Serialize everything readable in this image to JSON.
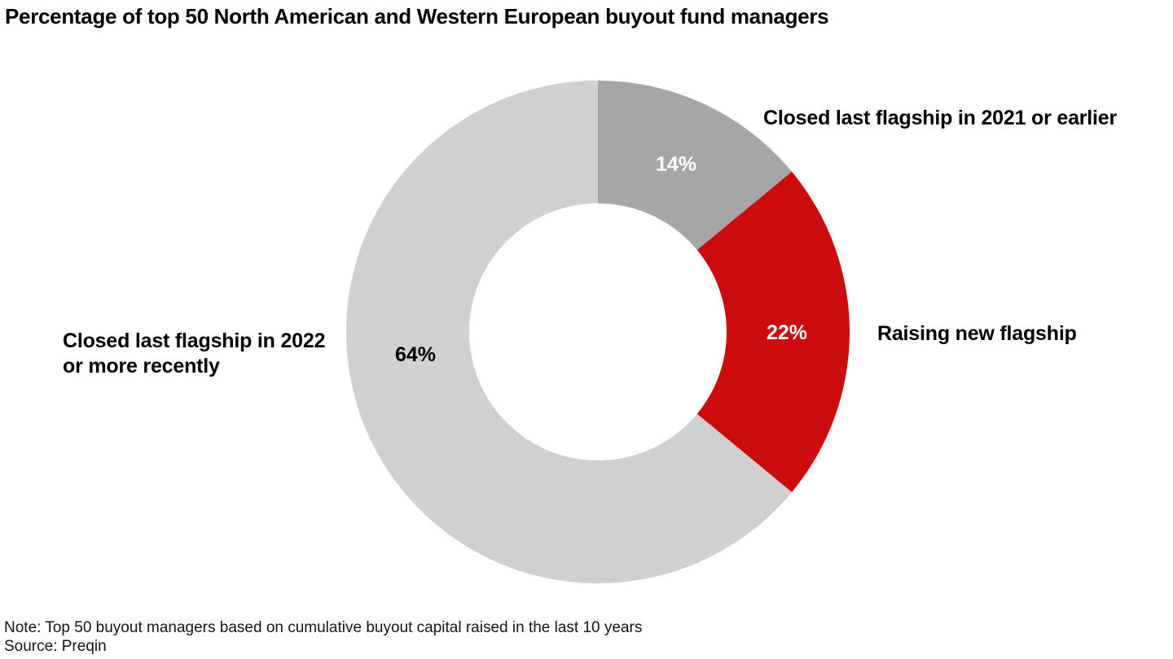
{
  "title": "Percentage of top 50 North American and Western European buyout fund managers",
  "footnote": {
    "note": "Note: Top 50 buyout managers based on cumulative buyout capital raised in the last 10 years",
    "source": "Source: Preqin"
  },
  "chart_data": {
    "type": "pie",
    "subtype": "donut",
    "title": "Percentage of top 50 North American and Western European buyout fund managers",
    "start_angle_deg": 0,
    "direction": "clockwise",
    "inner_radius_ratio": 0.51,
    "legend_position": "callouts-beside-slices",
    "segments": [
      {
        "label": "Closed last flagship in 2021 or earlier",
        "value": 14,
        "value_display": "14%",
        "color": "#a6a6a6",
        "value_label_color": "#ffffff"
      },
      {
        "label": "Raising new flagship",
        "value": 22,
        "value_display": "22%",
        "color": "#cc0b0c",
        "value_label_color": "#ffffff"
      },
      {
        "label": "Closed last flagship in 2022\nor more recently",
        "value": 64,
        "value_display": "64%",
        "color": "#d0d0d0",
        "value_label_color": "#000000"
      }
    ]
  }
}
